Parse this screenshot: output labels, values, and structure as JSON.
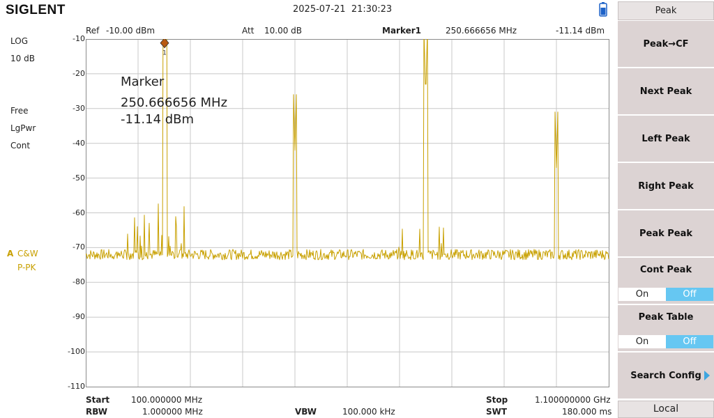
{
  "brand": "SIGLENT",
  "datetime": "2025-07-21  21:30:23",
  "header": {
    "ref_label": "Ref",
    "ref_value": "-10.00 dBm",
    "att_label": "Att",
    "att_value": "10.00 dB",
    "marker_label": "Marker1",
    "marker_freq": "250.666656 MHz",
    "marker_amp": "-11.14 dBm"
  },
  "left_panel": {
    "scale_type": "LOG",
    "scale_div": "10 dB",
    "trig": "Free",
    "detector_type": "LgPwr",
    "sweep": "Cont",
    "trace_letter": "A",
    "trace_mode": "C&W",
    "trace_detector": "P-PK"
  },
  "y_axis": {
    "ticks": [
      "-10",
      "-20",
      "-30",
      "-40",
      "-50",
      "-60",
      "-70",
      "-80",
      "-90",
      "-100",
      "-110"
    ],
    "top": -10,
    "bottom": -110
  },
  "marker_readout": {
    "title": "Marker",
    "freq": "250.666656 MHz",
    "amp": "-11.14 dBm"
  },
  "bottom": {
    "start_label": "Start",
    "start_value": "100.000000 MHz",
    "rbw_label": "RBW",
    "rbw_value": "1.000000 MHz",
    "vbw_label": "VBW",
    "vbw_value": "100.000 kHz",
    "stop_label": "Stop",
    "stop_value": "1.100000000 GHz",
    "swt_label": "SWT",
    "swt_value": "180.000 ms"
  },
  "softkeys": {
    "menu_title": "Peak",
    "peak_cf": "Peak→CF",
    "next_peak": "Next Peak",
    "left_peak": "Left Peak",
    "right_peak": "Right Peak",
    "peak_peak": "Peak Peak",
    "cont_peak": "Cont Peak",
    "cont_on": "On",
    "cont_off": "Off",
    "peak_table": "Peak Table",
    "table_on": "On",
    "table_off": "Off",
    "search_config": "Search Config",
    "local": "Local"
  },
  "colors": {
    "trace": "#c8a000",
    "grid": "#c8c8c8",
    "selected": "#66c7f2",
    "softkey_bg": "#dcd3d3",
    "marker": "#b85a10"
  },
  "chart_data": {
    "type": "line",
    "xlabel": "",
    "ylabel": "",
    "xlim": [
      100,
      1100
    ],
    "ylim": [
      -110,
      -10
    ],
    "x_unit_note": "MHz",
    "peaks": [
      {
        "x": 250.67,
        "y": -11.14
      },
      {
        "x": 500.0,
        "y": -42
      },
      {
        "x": 750.0,
        "y": -27
      },
      {
        "x": 1000.0,
        "y": -47
      }
    ],
    "series": [
      {
        "x": [
          100,
          150,
          200,
          250,
          300,
          350,
          400,
          450,
          500,
          550,
          600,
          650,
          700,
          750,
          800,
          850,
          900,
          950,
          1000,
          1050,
          1100
        ],
        "y": [
          -73,
          -66,
          -64,
          -62,
          -66,
          -72,
          -71,
          -71,
          -42,
          -71,
          -72,
          -72,
          -66,
          -27,
          -66,
          -71,
          -71,
          -70,
          -47,
          -70,
          -70
        ]
      }
    ]
  }
}
